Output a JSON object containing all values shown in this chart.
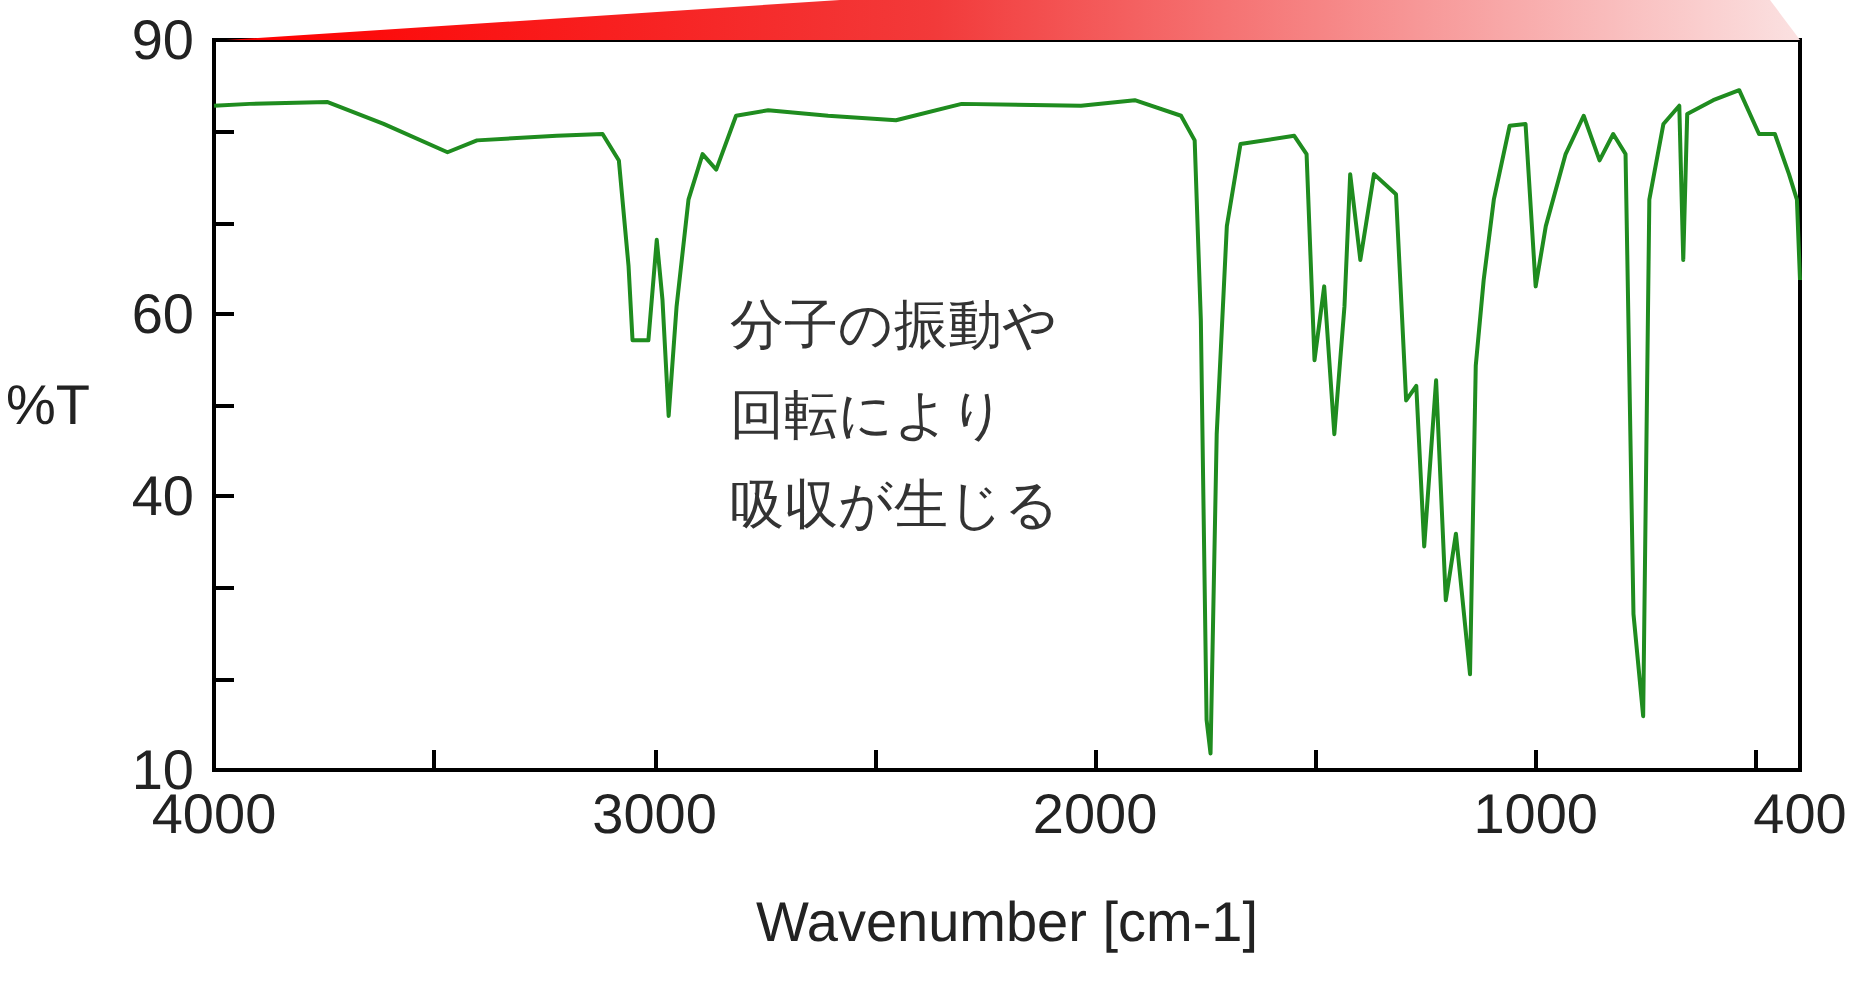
{
  "chart_data": {
    "type": "line",
    "xlabel": "Wavenumber [cm-1]",
    "ylabel": "%T",
    "annotations": [
      "分子の振動や",
      "回転により",
      "吸収が生じる"
    ],
    "xlim": [
      4000,
      400
    ],
    "xticks": [
      4000,
      {
        "value": 3500,
        "label": null
      },
      3000,
      {
        "value": 2500,
        "label": null
      },
      2000,
      {
        "value": 1500,
        "label": null
      },
      1000,
      {
        "value": 500,
        "label": null
      },
      400
    ],
    "ylim": [
      10,
      90
    ],
    "yticks": [
      10,
      {
        "value": 20,
        "label": null
      },
      {
        "value": 30,
        "label": null
      },
      40,
      {
        "value": 50,
        "label": null
      },
      60,
      {
        "value": 70,
        "label": null
      },
      {
        "value": 80,
        "label": null
      },
      90
    ],
    "grid": false,
    "marker": "none",
    "line_style": "solid",
    "series": [
      {
        "color": "#1f8c1f",
        "x": [
          4000,
          3919,
          3742,
          3615,
          3470,
          3403,
          3222,
          3118,
          3081,
          3059,
          3050,
          3014,
          2995,
          2982,
          2968,
          2950,
          2923,
          2891,
          2860,
          2815,
          2742,
          2606,
          2452,
          2303,
          2032,
          1910,
          1805,
          1774,
          1760,
          1747,
          1738,
          1724,
          1701,
          1670,
          1548,
          1520,
          1502,
          1480,
          1457,
          1434,
          1421,
          1398,
          1367,
          1317,
          1294,
          1271,
          1253,
          1226,
          1204,
          1181,
          1149,
          1136,
          1118,
          1095,
          1059,
          1023,
          1000,
          977,
          932,
          891,
          855,
          824,
          796,
          778,
          756,
          742,
          710,
          674,
          665,
          656,
          597,
          538,
          493,
          457,
          425,
          407,
          400
        ],
        "values": [
          82.8,
          83,
          83.2,
          80.8,
          77.7,
          79,
          79.5,
          79.7,
          76.8,
          65.2,
          57.1,
          57.1,
          68.1,
          61.5,
          48.8,
          60.8,
          72.5,
          77.5,
          75.8,
          81.7,
          82.3,
          81.7,
          81.2,
          83,
          82.8,
          83.4,
          81.7,
          79,
          59.3,
          15.5,
          11.8,
          46.8,
          69.6,
          78.6,
          79.5,
          77.5,
          54.9,
          63,
          46.8,
          60.8,
          75.3,
          65.9,
          75.3,
          73.1,
          50.5,
          52.1,
          34.5,
          52.7,
          28.6,
          35.9,
          20.5,
          54.3,
          63.7,
          72.5,
          80.6,
          80.8,
          63,
          69.6,
          77.5,
          81.7,
          76.8,
          79.7,
          77.5,
          27.1,
          15.9,
          72.5,
          80.8,
          82.8,
          65.9,
          81.9,
          83.4,
          84.5,
          79.7,
          79.7,
          75.3,
          72.5,
          63.7
        ]
      }
    ]
  }
}
